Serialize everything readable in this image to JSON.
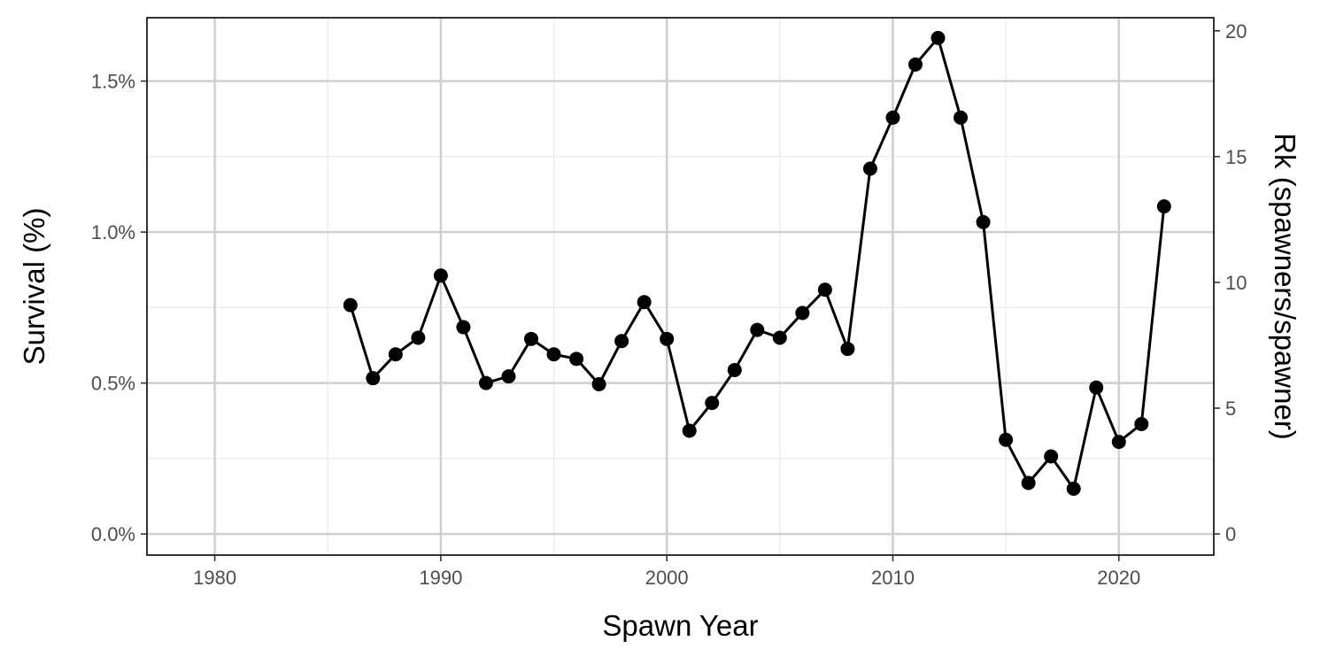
{
  "chart_data": {
    "type": "line",
    "xlabel": "Spawn Year",
    "ylabel": "Survival (%)",
    "y2label": "Rk (spawners/spawner)",
    "xlim": [
      1977,
      2024.2
    ],
    "ylim": [
      -0.0007,
      0.0171
    ],
    "y2_scale": 1200,
    "x_ticks": [
      1980,
      1990,
      2000,
      2010,
      2020
    ],
    "x_minor_ticks": [
      1985,
      1995,
      2005,
      2015
    ],
    "y_ticks": [
      0.0,
      0.005,
      0.01,
      0.015
    ],
    "y_tick_labels": [
      "0.0%",
      "0.5%",
      "1.0%",
      "1.5%"
    ],
    "y_minor_ticks": [
      0.0025,
      0.0075,
      0.0125
    ],
    "y2_ticks": [
      0,
      5,
      10,
      15,
      20
    ],
    "grid": true,
    "series": [
      {
        "x": [
          1986,
          1987,
          1988,
          1989,
          1990,
          1991,
          1992,
          1993,
          1994,
          1995,
          1996,
          1997,
          1998,
          1999,
          2000,
          2001,
          2002,
          2003,
          2004,
          2005,
          2006,
          2007,
          2008,
          2009,
          2010,
          2011,
          2012,
          2013,
          2014,
          2015,
          2016,
          2017,
          2018,
          2019,
          2020,
          2021,
          2022
        ],
        "y": [
          0.00758,
          0.00516,
          0.00595,
          0.0065,
          0.00856,
          0.00685,
          0.005,
          0.00522,
          0.00646,
          0.00595,
          0.0058,
          0.00496,
          0.00639,
          0.00768,
          0.00646,
          0.00342,
          0.00434,
          0.00543,
          0.00676,
          0.0065,
          0.00732,
          0.00809,
          0.00613,
          0.0121,
          0.01379,
          0.01555,
          0.01643,
          0.01379,
          0.01033,
          0.00312,
          0.00169,
          0.00257,
          0.0015,
          0.00485,
          0.00305,
          0.00364,
          0.01085
        ],
        "color": "#000000"
      }
    ]
  }
}
